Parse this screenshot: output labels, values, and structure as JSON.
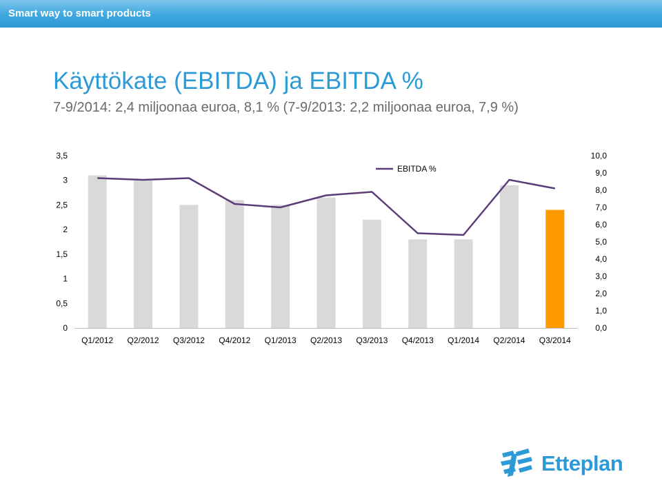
{
  "header": {
    "banner_text": "Smart way to smart products"
  },
  "slide": {
    "title": "Käyttökate (EBITDA) ja EBITDA %",
    "subtitle": "7-9/2014: 2,4 miljoonaa euroa, 8,1 % (7-9/2013: 2,2 miljoonaa euroa, 7,9 %)"
  },
  "chart_data": {
    "type": "bar",
    "categories": [
      "Q1/2012",
      "Q2/2012",
      "Q3/2012",
      "Q4/2012",
      "Q1/2013",
      "Q2/2013",
      "Q3/2013",
      "Q4/2013",
      "Q1/2014",
      "Q2/2014",
      "Q3/2014"
    ],
    "series": [
      {
        "values": [
          3.1,
          3.0,
          2.5,
          2.6,
          2.5,
          2.65,
          2.2,
          1.8,
          1.8,
          2.9,
          2.4
        ],
        "color": "#d9d9d9",
        "highlight_color": "#ff9900",
        "highlight_index": 10
      },
      {
        "name": "EBITDA %",
        "type": "line",
        "axis": "right",
        "values": [
          8.7,
          8.6,
          8.7,
          7.2,
          7.0,
          7.7,
          7.9,
          5.5,
          5.4,
          8.6,
          8.1
        ],
        "color": "#5b3c78"
      }
    ],
    "y_left": {
      "lim": [
        0,
        3.5
      ],
      "ticks": [
        "0",
        "0,5",
        "1",
        "1,5",
        "2",
        "2,5",
        "3",
        "3,5"
      ]
    },
    "y_right": {
      "lim": [
        0,
        10
      ],
      "ticks": [
        "0,0",
        "1,0",
        "2,0",
        "3,0",
        "4,0",
        "5,0",
        "6,0",
        "7,0",
        "8,0",
        "9,0",
        "10,0"
      ]
    },
    "legend_position": "top-center",
    "grid": false
  },
  "logo": {
    "text": "Etteplan",
    "icon": "etteplan-logo-mark",
    "color": "#2d9ad8"
  }
}
